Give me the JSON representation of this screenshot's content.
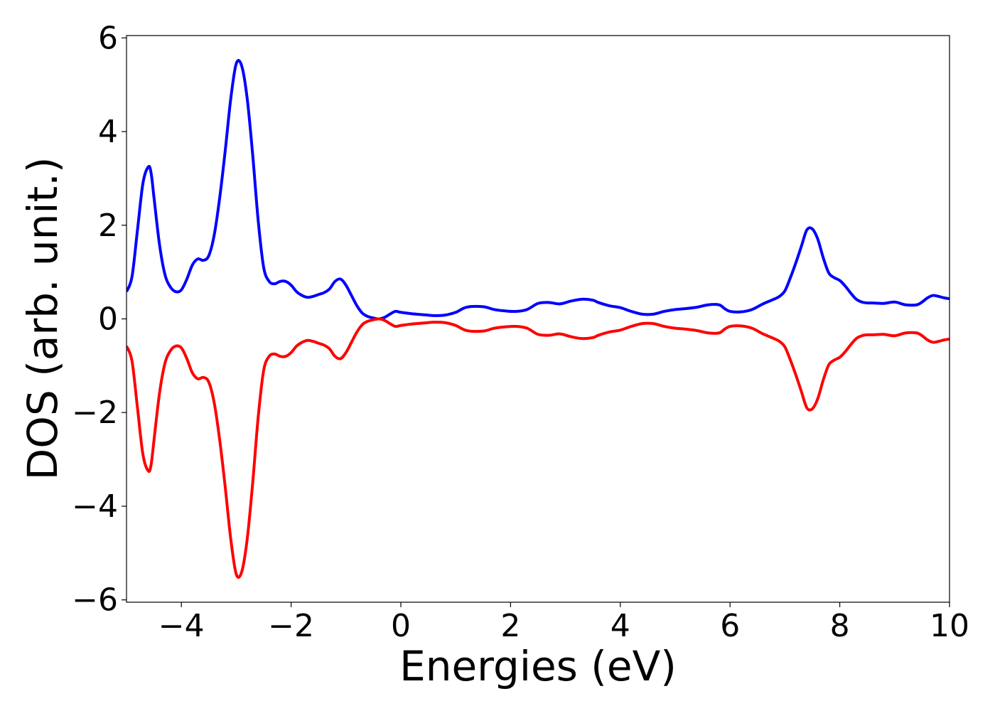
{
  "chart_data": {
    "type": "line",
    "title": "",
    "xlabel": "Energies (eV)",
    "ylabel": "DOS (arb. unit.)",
    "xlim": [
      -5,
      10
    ],
    "ylim": [
      -6.05,
      6.05
    ],
    "x_ticks": [
      -4,
      -2,
      0,
      2,
      4,
      6,
      8,
      10
    ],
    "y_ticks": [
      -6,
      -4,
      -2,
      0,
      2,
      4,
      6
    ],
    "grid": false,
    "legend": "none",
    "series": [
      {
        "color": "#0000ff",
        "x": [
          -5.0,
          -4.9,
          -4.8,
          -4.7,
          -4.6,
          -4.55,
          -4.5,
          -4.4,
          -4.3,
          -4.2,
          -4.1,
          -4.0,
          -3.9,
          -3.8,
          -3.7,
          -3.6,
          -3.5,
          -3.4,
          -3.3,
          -3.2,
          -3.1,
          -3.0,
          -2.9,
          -2.8,
          -2.7,
          -2.6,
          -2.5,
          -2.4,
          -2.3,
          -2.2,
          -2.1,
          -2.0,
          -1.9,
          -1.8,
          -1.7,
          -1.6,
          -1.5,
          -1.4,
          -1.3,
          -1.2,
          -1.1,
          -1.0,
          -0.9,
          -0.8,
          -0.7,
          -0.6,
          -0.5,
          -0.4,
          -0.3,
          -0.2,
          -0.1,
          0.0,
          0.2,
          0.4,
          0.5,
          0.6,
          0.8,
          1.0,
          1.2,
          1.5,
          1.7,
          1.9,
          2.1,
          2.3,
          2.5,
          2.7,
          2.9,
          3.1,
          3.3,
          3.5,
          3.6,
          3.8,
          4.0,
          4.2,
          4.4,
          4.6,
          4.8,
          5.0,
          5.2,
          5.4,
          5.6,
          5.8,
          5.9,
          6.0,
          6.2,
          6.4,
          6.6,
          6.8,
          6.9,
          7.0,
          7.1,
          7.2,
          7.3,
          7.4,
          7.5,
          7.6,
          7.7,
          7.8,
          7.9,
          8.0,
          8.1,
          8.2,
          8.3,
          8.4,
          8.5,
          8.6,
          8.8,
          9.0,
          9.2,
          9.4,
          9.5,
          9.6,
          9.7,
          9.8,
          9.9,
          10.0
        ],
        "y": [
          0.58,
          0.9,
          1.9,
          2.9,
          3.25,
          3.1,
          2.6,
          1.6,
          0.95,
          0.68,
          0.58,
          0.62,
          0.85,
          1.15,
          1.28,
          1.25,
          1.35,
          1.8,
          2.6,
          3.6,
          4.7,
          5.45,
          5.4,
          4.7,
          3.5,
          2.1,
          1.1,
          0.8,
          0.75,
          0.8,
          0.8,
          0.72,
          0.58,
          0.5,
          0.46,
          0.48,
          0.52,
          0.56,
          0.64,
          0.8,
          0.85,
          0.72,
          0.5,
          0.28,
          0.12,
          0.05,
          0.02,
          0.0,
          0.03,
          0.1,
          0.16,
          0.14,
          0.11,
          0.09,
          0.08,
          0.07,
          0.08,
          0.14,
          0.25,
          0.26,
          0.2,
          0.17,
          0.16,
          0.2,
          0.33,
          0.35,
          0.32,
          0.38,
          0.42,
          0.4,
          0.35,
          0.28,
          0.24,
          0.16,
          0.1,
          0.1,
          0.16,
          0.2,
          0.22,
          0.25,
          0.3,
          0.3,
          0.22,
          0.16,
          0.15,
          0.2,
          0.32,
          0.42,
          0.48,
          0.6,
          0.88,
          1.2,
          1.55,
          1.9,
          1.92,
          1.7,
          1.3,
          0.98,
          0.88,
          0.82,
          0.7,
          0.55,
          0.42,
          0.36,
          0.34,
          0.34,
          0.33,
          0.36,
          0.3,
          0.3,
          0.36,
          0.45,
          0.5,
          0.48,
          0.45,
          0.43
        ]
      },
      {
        "color": "#ff0000",
        "x": [
          -5.0,
          -4.9,
          -4.8,
          -4.7,
          -4.6,
          -4.55,
          -4.5,
          -4.4,
          -4.3,
          -4.2,
          -4.1,
          -4.0,
          -3.9,
          -3.8,
          -3.7,
          -3.6,
          -3.5,
          -3.4,
          -3.3,
          -3.2,
          -3.1,
          -3.0,
          -2.9,
          -2.8,
          -2.7,
          -2.6,
          -2.5,
          -2.4,
          -2.3,
          -2.2,
          -2.1,
          -2.0,
          -1.9,
          -1.8,
          -1.7,
          -1.6,
          -1.5,
          -1.4,
          -1.3,
          -1.2,
          -1.1,
          -1.0,
          -0.9,
          -0.8,
          -0.7,
          -0.6,
          -0.5,
          -0.4,
          -0.3,
          -0.2,
          -0.1,
          0.0,
          0.2,
          0.4,
          0.5,
          0.6,
          0.8,
          1.0,
          1.2,
          1.5,
          1.7,
          1.9,
          2.1,
          2.3,
          2.5,
          2.7,
          2.9,
          3.1,
          3.3,
          3.5,
          3.6,
          3.8,
          4.0,
          4.2,
          4.4,
          4.6,
          4.8,
          5.0,
          5.2,
          5.4,
          5.6,
          5.8,
          5.9,
          6.0,
          6.2,
          6.4,
          6.6,
          6.8,
          6.9,
          7.0,
          7.1,
          7.2,
          7.3,
          7.4,
          7.5,
          7.6,
          7.7,
          7.8,
          7.9,
          8.0,
          8.1,
          8.2,
          8.3,
          8.4,
          8.5,
          8.6,
          8.8,
          9.0,
          9.2,
          9.4,
          9.5,
          9.6,
          9.7,
          9.8,
          9.9,
          10.0
        ],
        "y": [
          -0.58,
          -0.9,
          -1.9,
          -2.9,
          -3.25,
          -3.1,
          -2.6,
          -1.6,
          -0.95,
          -0.68,
          -0.58,
          -0.62,
          -0.85,
          -1.15,
          -1.28,
          -1.25,
          -1.35,
          -1.8,
          -2.6,
          -3.6,
          -4.7,
          -5.45,
          -5.4,
          -4.7,
          -3.5,
          -2.1,
          -1.1,
          -0.8,
          -0.75,
          -0.8,
          -0.8,
          -0.72,
          -0.58,
          -0.5,
          -0.46,
          -0.48,
          -0.52,
          -0.56,
          -0.64,
          -0.8,
          -0.85,
          -0.72,
          -0.5,
          -0.28,
          -0.12,
          -0.05,
          -0.02,
          0.0,
          -0.03,
          -0.1,
          -0.16,
          -0.14,
          -0.11,
          -0.09,
          -0.08,
          -0.07,
          -0.08,
          -0.14,
          -0.25,
          -0.26,
          -0.2,
          -0.17,
          -0.16,
          -0.2,
          -0.33,
          -0.35,
          -0.32,
          -0.38,
          -0.42,
          -0.4,
          -0.35,
          -0.28,
          -0.24,
          -0.16,
          -0.1,
          -0.1,
          -0.16,
          -0.2,
          -0.22,
          -0.25,
          -0.3,
          -0.3,
          -0.22,
          -0.16,
          -0.15,
          -0.2,
          -0.32,
          -0.42,
          -0.48,
          -0.6,
          -0.88,
          -1.2,
          -1.55,
          -1.9,
          -1.92,
          -1.7,
          -1.3,
          -0.98,
          -0.88,
          -0.82,
          -0.7,
          -0.55,
          -0.42,
          -0.36,
          -0.34,
          -0.34,
          -0.33,
          -0.36,
          -0.3,
          -0.3,
          -0.36,
          -0.45,
          -0.5,
          -0.48,
          -0.45,
          -0.43
        ]
      }
    ]
  }
}
